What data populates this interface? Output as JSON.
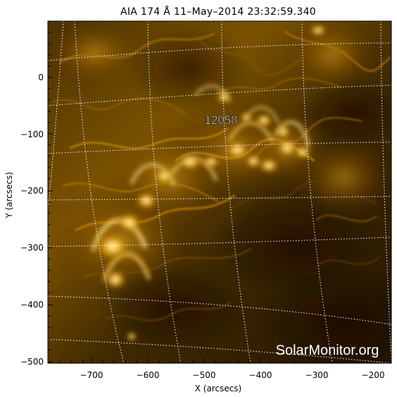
{
  "title": "AIA 174 Å 11–May–2014 23:32:59.340",
  "xlabel": "X (arcsecs)",
  "ylabel": "Y (arcsecs)",
  "x_ticks": [
    "−700",
    "−600",
    "−500",
    "−400",
    "−300",
    "−200"
  ],
  "y_ticks": [
    "0",
    "−100",
    "−200",
    "−300",
    "−400",
    "−500"
  ],
  "region_label": "12058",
  "watermark": "SolarMonitor.org",
  "colors": {
    "background": "#ffffff",
    "image_dark": "#1e1000",
    "image_mid": "#8a5c00",
    "image_bright": "#ffd85a",
    "grid": "#ffffff"
  }
}
